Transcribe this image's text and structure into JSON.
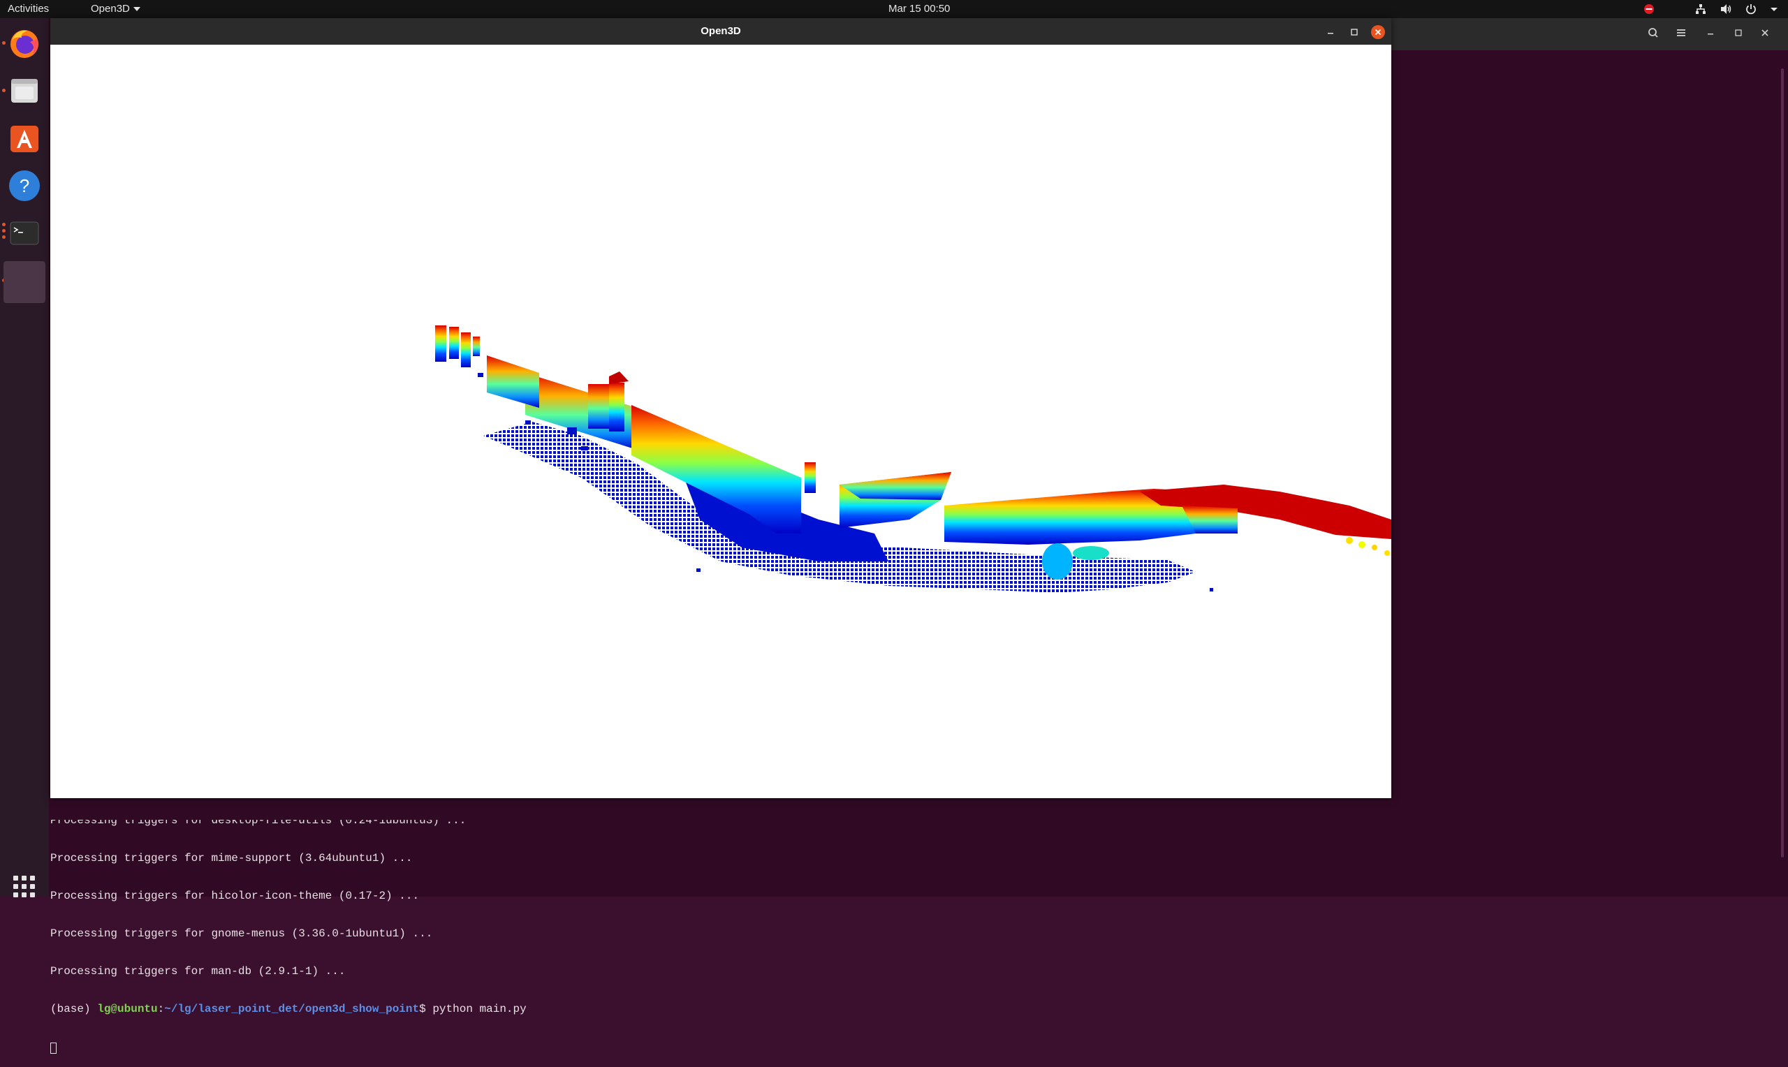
{
  "topbar": {
    "activities": "Activities",
    "app_menu": "Open3D",
    "clock": "Mar 15  00:50",
    "tray_icons": [
      "do-not-disturb-icon",
      "network-icon",
      "volume-icon",
      "power-icon",
      "chevron-down-icon"
    ]
  },
  "dock": {
    "items": [
      "firefox-icon",
      "files-icon",
      "ubuntu-software-icon",
      "help-icon",
      "terminal-icon",
      "open3d-window-icon"
    ],
    "show_apps": "grid-icon"
  },
  "open3d_window": {
    "title": "Open3D",
    "controls": [
      "minimize-icon",
      "maximize-icon",
      "close-icon"
    ],
    "content": "point cloud visualization colored by height (jet colormap: blue low to red high)"
  },
  "terminal": {
    "lines": [
      "Processing triggers for desktop-file-utils (0.24-1ubuntu3) ...",
      "Processing triggers for mime-support (3.64ubuntu1) ...",
      "Processing triggers for hicolor-icon-theme (0.17-2) ...",
      "Processing triggers for gnome-menus (3.36.0-1ubuntu1) ...",
      "Processing triggers for man-db (2.9.1-1) ..."
    ],
    "prompt": {
      "env": "(base) ",
      "user_host": "lg@ubuntu",
      "sep": ":",
      "path": "~/lg/laser_point_det/open3d_show_point",
      "symbol": "$ ",
      "command": "python main.py"
    }
  },
  "colors": {
    "desktop_bg": "#300a24",
    "topbar_bg": "#141414",
    "close_button": "#e95420",
    "prompt_user": "#7fd34e",
    "prompt_path": "#5c8fe6"
  }
}
